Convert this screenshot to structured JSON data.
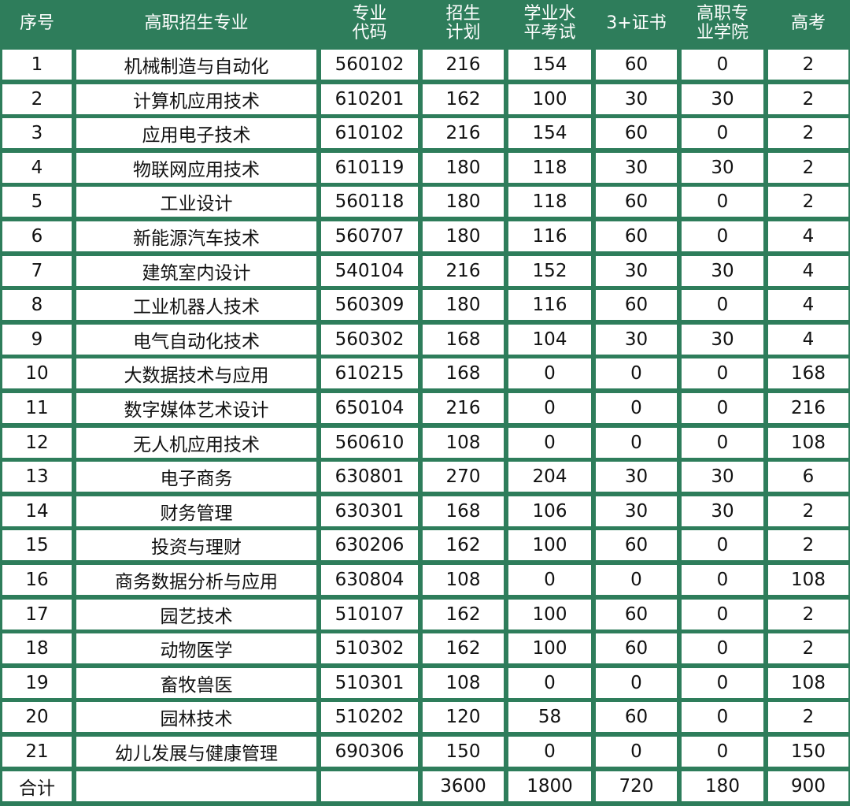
{
  "headers": [
    "序号",
    "高职招生专业",
    "专业\n代码",
    "招生\n计划",
    "学业水\n平考试",
    "3+证书",
    "高职专\n业学院",
    "高考"
  ],
  "rows": [
    [
      "1",
      "机械制造与自动化",
      "560102",
      "216",
      "154",
      "60",
      "0",
      "2"
    ],
    [
      "2",
      "计算机应用技术",
      "610201",
      "162",
      "100",
      "30",
      "30",
      "2"
    ],
    [
      "3",
      "应用电子技术",
      "610102",
      "216",
      "154",
      "60",
      "0",
      "2"
    ],
    [
      "4",
      "物联网应用技术",
      "610119",
      "180",
      "118",
      "30",
      "30",
      "2"
    ],
    [
      "5",
      "工业设计",
      "560118",
      "180",
      "118",
      "60",
      "0",
      "2"
    ],
    [
      "6",
      "新能源汽车技术",
      "560707",
      "180",
      "116",
      "60",
      "0",
      "4"
    ],
    [
      "7",
      "建筑室内设计",
      "540104",
      "216",
      "152",
      "30",
      "30",
      "4"
    ],
    [
      "8",
      "工业机器人技术",
      "560309",
      "180",
      "116",
      "60",
      "0",
      "4"
    ],
    [
      "9",
      "电气自动化技术",
      "560302",
      "168",
      "104",
      "30",
      "30",
      "4"
    ],
    [
      "10",
      "大数据技术与应用",
      "610215",
      "168",
      "0",
      "0",
      "0",
      "168"
    ],
    [
      "11",
      "数字媒体艺术设计",
      "650104",
      "216",
      "0",
      "0",
      "0",
      "216"
    ],
    [
      "12",
      "无人机应用技术",
      "560610",
      "108",
      "0",
      "0",
      "0",
      "108"
    ],
    [
      "13",
      "电子商务",
      "630801",
      "270",
      "204",
      "30",
      "30",
      "6"
    ],
    [
      "14",
      "财务管理",
      "630301",
      "168",
      "106",
      "30",
      "30",
      "2"
    ],
    [
      "15",
      "投资与理财",
      "630206",
      "162",
      "100",
      "60",
      "0",
      "2"
    ],
    [
      "16",
      "商务数据分析与应用",
      "630804",
      "108",
      "0",
      "0",
      "0",
      "108"
    ],
    [
      "17",
      "园艺技术",
      "510107",
      "162",
      "100",
      "60",
      "0",
      "2"
    ],
    [
      "18",
      "动物医学",
      "510302",
      "162",
      "100",
      "60",
      "0",
      "2"
    ],
    [
      "19",
      "畜牧兽医",
      "510301",
      "108",
      "0",
      "0",
      "0",
      "108"
    ],
    [
      "20",
      "园林技术",
      "510202",
      "120",
      "58",
      "60",
      "0",
      "2"
    ],
    [
      "21",
      "幼儿发展与健康管理",
      "690306",
      "150",
      "0",
      "0",
      "0",
      "150"
    ],
    [
      "合计",
      "",
      "",
      "3600",
      "1800",
      "720",
      "180",
      "900"
    ]
  ],
  "colors": {
    "header_bg": "#2e7d5b",
    "grid_line": "#2e7d5b",
    "cell_bg": "#ffffff",
    "header_text": "#ffffff",
    "cell_text": "#111111"
  }
}
